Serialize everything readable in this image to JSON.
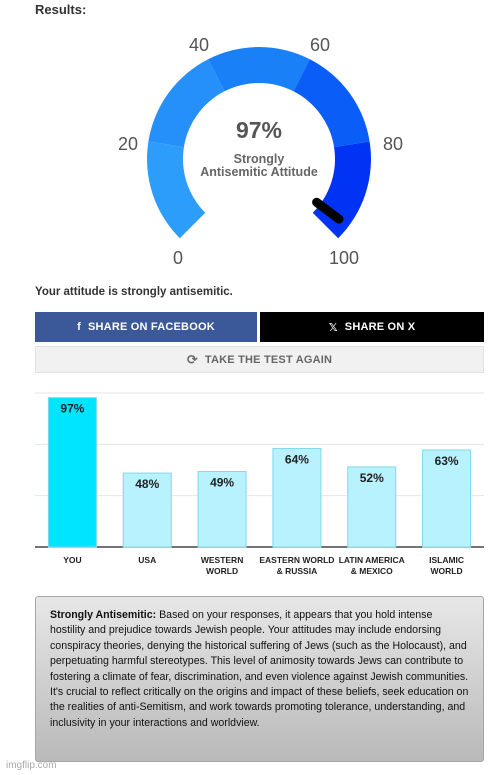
{
  "results_heading": "Results:",
  "gauge": {
    "percent_label": "97%",
    "attitude_line1": "Strongly",
    "attitude_line2": "Antisemitic Attitude",
    "value": 97,
    "tick_labels": [
      "0",
      "20",
      "40",
      "60",
      "80",
      "100"
    ],
    "segment_colors": [
      "#2d9dfb",
      "#2590fa",
      "#1a80f7",
      "#0a5ef7",
      "#0033f4"
    ],
    "needle_color": "#000000"
  },
  "attitude_sentence": "Your attitude is strongly antisemitic.",
  "share": {
    "facebook_label": "SHARE ON FACEBOOK",
    "facebook_icon": "facebook-icon",
    "x_label": "SHARE ON X",
    "x_icon": "x-logo-icon",
    "retake_label": "TAKE THE TEST AGAIN",
    "retake_icon": "refresh-icon"
  },
  "chart_data": {
    "type": "bar",
    "categories": [
      "YOU",
      "USA",
      "WESTERN\nWORLD",
      "EASTERN WORLD\n& RUSSIA",
      "LATIN AMERICA\n& MEXICO",
      "ISLAMIC\nWORLD"
    ],
    "values": [
      97,
      48,
      49,
      64,
      52,
      63
    ],
    "value_labels": [
      "97%",
      "48%",
      "49%",
      "64%",
      "52%",
      "63%"
    ],
    "ylim": [
      0,
      100
    ],
    "grid": true,
    "colors": {
      "you": "#00e5ff",
      "others": "#b8f2ff",
      "border": "#7fd8ec"
    }
  },
  "info": {
    "title": "Strongly Antisemitic:",
    "body": "Based on your responses, it appears that you hold intense hostility and prejudice towards Jewish people. Your attitudes may include endorsing conspiracy theories, denying the historical suffering of Jews (such as the Holocaust), and perpetuating harmful stereotypes. This level of animosity towards Jews can contribute to fostering a climate of fear, discrimination, and even violence against Jewish communities. It's crucial to reflect critically on the origins and impact of these beliefs, seek education on the realities of anti-Semitism, and work towards promoting tolerance, understanding, and inclusivity in your interactions and worldview."
  },
  "watermark": "imgflip.com"
}
